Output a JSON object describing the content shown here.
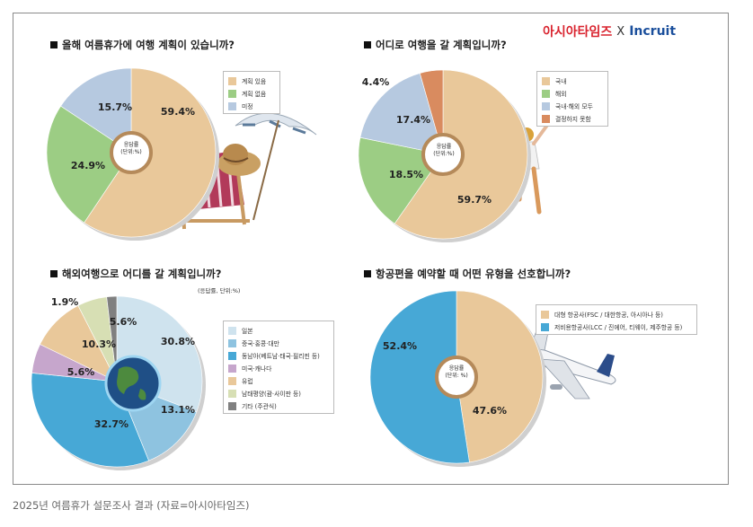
{
  "logo": {
    "part1": "아시아타임즈",
    "sep": "X",
    "part2": "Incruit"
  },
  "caption": "2025년 여름휴가 설문조사 결과 (자료=아시아타임즈)",
  "center_label_line1": "응답률",
  "center_label_line2": "(단위:%)",
  "center_label_line2_alt": "(단위: %)",
  "q3_unit_note": "(응답률, 단위:%)",
  "chart_data": [
    {
      "type": "pie",
      "title": "올해 여름휴가에 여행 계획이 있습니까?",
      "categories": [
        "계획 있음",
        "계획 없음",
        "미정"
      ],
      "values": [
        59.4,
        24.9,
        15.7
      ],
      "labels": [
        "59.4%",
        "24.9%",
        "15.7%"
      ],
      "colors": [
        "#e9c89a",
        "#9ccd84",
        "#b6c9e0"
      ]
    },
    {
      "type": "pie",
      "title": "어디로 여행을 갈 계획입니까?",
      "categories": [
        "국내",
        "해외",
        "국내·해외 모두",
        "결정하지 못함"
      ],
      "values": [
        59.7,
        18.5,
        17.4,
        4.4
      ],
      "labels": [
        "59.7%",
        "18.5%",
        "17.4%",
        "4.4%"
      ],
      "colors": [
        "#e9c89a",
        "#9ccd84",
        "#b6c9e0",
        "#d98b5f"
      ]
    },
    {
      "type": "pie",
      "title": "해외여행으로 어디를 갈 계획입니까?",
      "categories": [
        "일본",
        "중국·홍콩·대만",
        "동남아(베트남·태국·필리핀 등)",
        "미국·캐나다",
        "유럽",
        "남태평양(괌·사이판 등)",
        "기타 (주관식)"
      ],
      "values": [
        30.8,
        13.1,
        32.7,
        5.6,
        10.3,
        5.6,
        1.9
      ],
      "labels": [
        "30.8%",
        "13.1%",
        "32.7%",
        "5.6%",
        "10.3%",
        "5.6%",
        "1.9%"
      ],
      "colors": [
        "#cfe3ee",
        "#8ec3e0",
        "#47a8d6",
        "#c6a6cc",
        "#e9c89a",
        "#d7dfb4",
        "#808080"
      ]
    },
    {
      "type": "pie",
      "title": "항공편을 예약할 때 어떤 유형을 선호합니까?",
      "categories": [
        "대형 항공사(FSC / 대한항공, 아시아나 등)",
        "저비용항공사(LCC / 진에어, 티웨이, 제주항공 등)"
      ],
      "values": [
        47.6,
        52.4
      ],
      "labels": [
        "47.6%",
        "52.4%"
      ],
      "colors": [
        "#e9c89a",
        "#47a8d6"
      ]
    }
  ]
}
